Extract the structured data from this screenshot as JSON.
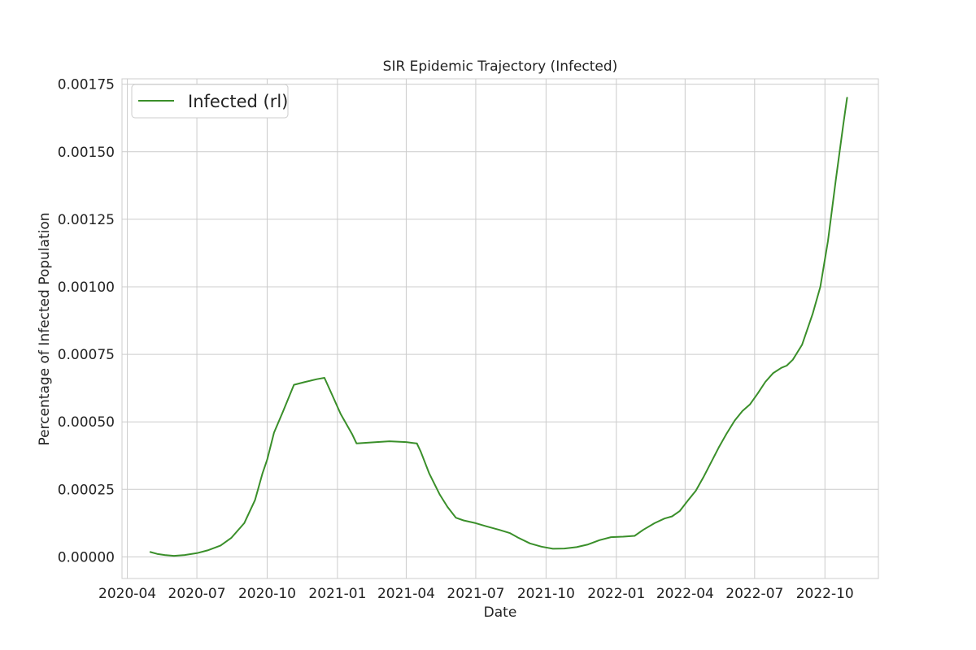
{
  "chart_data": {
    "type": "line",
    "title": "SIR Epidemic Trajectory (Infected)",
    "xlabel": "Date",
    "ylabel": "Percentage of Infected Population",
    "x_tick_labels": [
      "2020-04",
      "2020-07",
      "2020-10",
      "2021-01",
      "2021-04",
      "2021-07",
      "2021-10",
      "2022-01",
      "2022-04",
      "2022-07",
      "2022-10"
    ],
    "y_tick_labels": [
      "0.00000",
      "0.00025",
      "0.00050",
      "0.00075",
      "0.00100",
      "0.00125",
      "0.00150",
      "0.00175"
    ],
    "xlim": [
      "2020-03-25",
      "2022-12-10"
    ],
    "ylim": [
      -8e-05,
      0.00177
    ],
    "grid": true,
    "legend_position": "top-left",
    "series": [
      {
        "name": "Infected (rl)",
        "color": "#3a8f2a",
        "points": [
          [
            "2020-05-01",
            1.8e-05
          ],
          [
            "2020-05-10",
            1.1e-05
          ],
          [
            "2020-05-20",
            7e-06
          ],
          [
            "2020-06-01",
            4e-06
          ],
          [
            "2020-06-15",
            7e-06
          ],
          [
            "2020-07-01",
            1.4e-05
          ],
          [
            "2020-07-15",
            2.4e-05
          ],
          [
            "2020-08-01",
            4.2e-05
          ],
          [
            "2020-08-15",
            7e-05
          ],
          [
            "2020-09-01",
            0.000125
          ],
          [
            "2020-09-15",
            0.00021
          ],
          [
            "2020-09-25",
            0.00031
          ],
          [
            "2020-10-01",
            0.00036
          ],
          [
            "2020-10-10",
            0.00046
          ],
          [
            "2020-10-22",
            0.00054
          ],
          [
            "2020-11-05",
            0.000637
          ],
          [
            "2020-11-20",
            0.000648
          ],
          [
            "2020-12-05",
            0.000658
          ],
          [
            "2020-12-15",
            0.000663
          ],
          [
            "2020-12-25",
            0.0006
          ],
          [
            "2021-01-05",
            0.00053
          ],
          [
            "2021-01-20",
            0.000455
          ],
          [
            "2021-01-26",
            0.00042
          ],
          [
            "2021-02-15",
            0.000424
          ],
          [
            "2021-03-10",
            0.000428
          ],
          [
            "2021-04-01",
            0.000425
          ],
          [
            "2021-04-15",
            0.00042
          ],
          [
            "2021-04-20",
            0.00039
          ],
          [
            "2021-05-01",
            0.00031
          ],
          [
            "2021-05-15",
            0.00023
          ],
          [
            "2021-05-25",
            0.000185
          ],
          [
            "2021-06-05",
            0.000145
          ],
          [
            "2021-06-15",
            0.000135
          ],
          [
            "2021-07-01",
            0.000125
          ],
          [
            "2021-07-15",
            0.000113
          ],
          [
            "2021-08-01",
            0.0001
          ],
          [
            "2021-08-15",
            8.8e-05
          ],
          [
            "2021-08-25",
            7.2e-05
          ],
          [
            "2021-09-10",
            5e-05
          ],
          [
            "2021-09-25",
            3.8e-05
          ],
          [
            "2021-10-10",
            3e-05
          ],
          [
            "2021-10-25",
            3.1e-05
          ],
          [
            "2021-11-10",
            3.6e-05
          ],
          [
            "2021-11-25",
            4.6e-05
          ],
          [
            "2021-12-10",
            6.2e-05
          ],
          [
            "2021-12-25",
            7.3e-05
          ],
          [
            "2022-01-10",
            7.5e-05
          ],
          [
            "2022-01-25",
            7.8e-05
          ],
          [
            "2022-02-05",
            0.0001
          ],
          [
            "2022-02-20",
            0.000125
          ],
          [
            "2022-03-05",
            0.000142
          ],
          [
            "2022-03-15",
            0.00015
          ],
          [
            "2022-03-25",
            0.00017
          ],
          [
            "2022-04-05",
            0.00021
          ],
          [
            "2022-04-15",
            0.000245
          ],
          [
            "2022-04-25",
            0.000295
          ],
          [
            "2022-05-05",
            0.00035
          ],
          [
            "2022-05-15",
            0.000405
          ],
          [
            "2022-05-25",
            0.000455
          ],
          [
            "2022-06-05",
            0.000505
          ],
          [
            "2022-06-15",
            0.00054
          ],
          [
            "2022-06-25",
            0.000565
          ],
          [
            "2022-07-05",
            0.000605
          ],
          [
            "2022-07-15",
            0.000648
          ],
          [
            "2022-07-25",
            0.00068
          ],
          [
            "2022-08-05",
            0.0007
          ],
          [
            "2022-08-12",
            0.000708
          ],
          [
            "2022-08-20",
            0.00073
          ],
          [
            "2022-09-01",
            0.000785
          ],
          [
            "2022-09-15",
            0.0009
          ],
          [
            "2022-09-25",
            0.001
          ],
          [
            "2022-10-05",
            0.00117
          ],
          [
            "2022-10-15",
            0.00139
          ],
          [
            "2022-10-25",
            0.0016
          ],
          [
            "2022-10-30",
            0.0017
          ]
        ]
      }
    ]
  }
}
